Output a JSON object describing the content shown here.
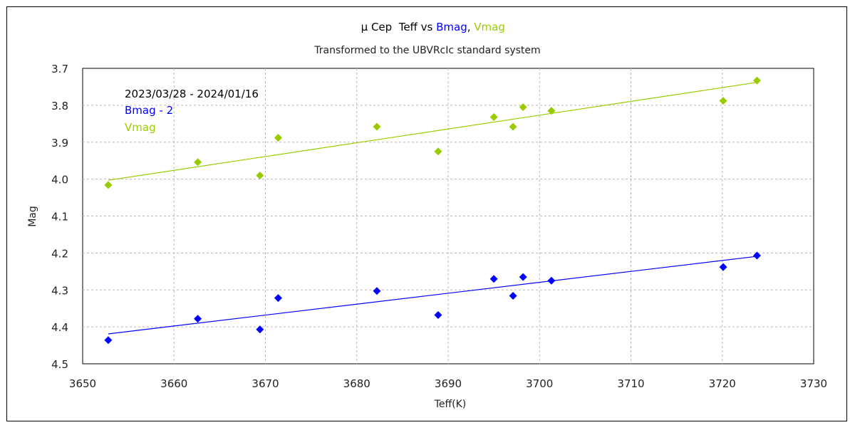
{
  "chart_data": {
    "type": "scatter",
    "title_parts": [
      {
        "text": "μ Cep  Teff vs ",
        "color": "#000000"
      },
      {
        "text": "Bmag",
        "color": "#0000ff"
      },
      {
        "text": ", ",
        "color": "#000000"
      },
      {
        "text": "Vmag",
        "color": "#99cc00"
      }
    ],
    "subtitle": "Transformed to the UBVRcIc standard system",
    "xlabel": "Teff(K)",
    "ylabel": "Mag",
    "xlim": [
      3650,
      3730
    ],
    "ylim": [
      3.7,
      4.5
    ],
    "y_inverted": true,
    "xticks": [
      3650,
      3660,
      3670,
      3680,
      3690,
      3700,
      3710,
      3720,
      3730
    ],
    "yticks": [
      "3.7",
      "3.8",
      "3.9",
      "4.0",
      "4.1",
      "4.2",
      "4.3",
      "4.4",
      "4.5"
    ],
    "grid": true,
    "annotations": [
      {
        "text": "2023/03/28 - 2024/01/16",
        "color": "#000000"
      },
      {
        "text": "Bmag - 2",
        "color": "#0000ff"
      },
      {
        "text": "Vmag",
        "color": "#99cc00"
      }
    ],
    "series": [
      {
        "color": "#99cc00",
        "marker": "diamond",
        "points": [
          [
            3652.8,
            4.016
          ],
          [
            3662.6,
            3.954
          ],
          [
            3669.4,
            3.99
          ],
          [
            3671.4,
            3.888
          ],
          [
            3682.2,
            3.858
          ],
          [
            3688.9,
            3.925
          ],
          [
            3695.0,
            3.832
          ],
          [
            3697.1,
            3.858
          ],
          [
            3698.2,
            3.805
          ],
          [
            3701.3,
            3.815
          ],
          [
            3720.1,
            3.788
          ],
          [
            3723.8,
            3.733
          ]
        ],
        "trend": [
          [
            3652.8,
            4.003
          ],
          [
            3723.8,
            3.738
          ]
        ]
      },
      {
        "color": "#0000ff",
        "marker": "diamond",
        "points": [
          [
            3652.8,
            4.436
          ],
          [
            3662.6,
            4.378
          ],
          [
            3669.4,
            4.407
          ],
          [
            3671.4,
            4.322
          ],
          [
            3682.2,
            4.303
          ],
          [
            3688.9,
            4.368
          ],
          [
            3695.0,
            4.27
          ],
          [
            3697.1,
            4.316
          ],
          [
            3698.2,
            4.265
          ],
          [
            3701.3,
            4.275
          ],
          [
            3720.1,
            4.238
          ],
          [
            3723.8,
            4.207
          ]
        ],
        "trend": [
          [
            3652.8,
            4.419
          ],
          [
            3723.8,
            4.209
          ]
        ]
      }
    ]
  }
}
